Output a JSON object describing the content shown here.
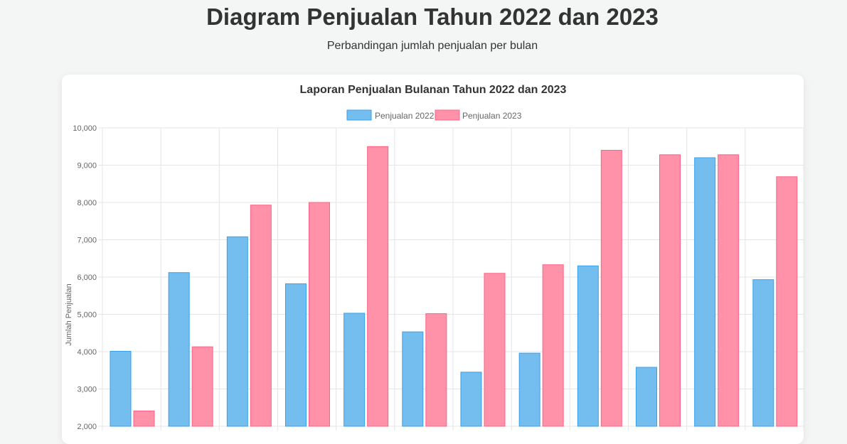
{
  "page": {
    "title": "Diagram Penjualan Tahun 2022 dan 2023",
    "subtitle": "Perbandingan jumlah penjualan per bulan"
  },
  "colors": {
    "series_2022_fill": "#74bdef",
    "series_2022_stroke": "#36a2eb",
    "series_2023_fill": "#ff91a9",
    "series_2023_stroke": "#ff6384",
    "grid": "#e5e5e5",
    "text": "#666666",
    "title": "#333333"
  },
  "chart_data": {
    "type": "bar",
    "title": "Laporan Penjualan Bulanan Tahun 2022 dan 2023",
    "xlabel": "",
    "ylabel": "Jumlah Penjualan",
    "categories": [
      "",
      "",
      "",
      "",
      "",
      "",
      "",
      "",
      "",
      "",
      "",
      ""
    ],
    "series": [
      {
        "name": "Penjualan 2022",
        "values": [
          4010,
          6120,
          7080,
          5820,
          5030,
          4530,
          3450,
          3960,
          6300,
          3580,
          9200,
          5930
        ]
      },
      {
        "name": "Penjualan 2023",
        "values": [
          2410,
          4130,
          7930,
          8000,
          9500,
          5020,
          6100,
          6330,
          9400,
          9280,
          9280,
          8690
        ]
      }
    ],
    "yticks": [
      "2,000",
      "3,000",
      "4,000",
      "5,000",
      "6,000",
      "7,000",
      "8,000",
      "9,000",
      "10,000"
    ],
    "ylim": [
      2000,
      10000
    ],
    "grid": true,
    "legend_position": "top-center"
  }
}
